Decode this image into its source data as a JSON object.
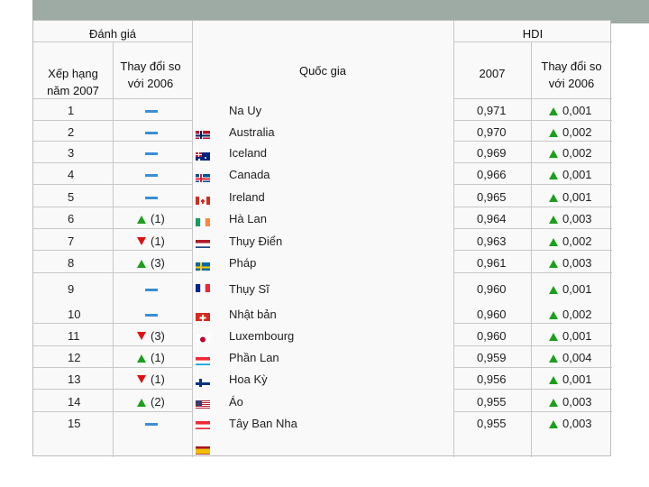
{
  "header": {
    "rating_group": "Đánh giá",
    "hdi_group": "HDI",
    "rank_col": "Xếp hạng năm 2007",
    "change_col": "Thay đổi so với 2006",
    "country_col": "Quốc gia",
    "year_col": "2007",
    "hdi_change_col": "Thay đổi so với 2006"
  },
  "rows": [
    {
      "rank": "1",
      "change": "",
      "change_dir": "same",
      "country": "Na Uy",
      "hdi": "0,971",
      "hdi_change": "0,001",
      "hdi_dir": "up",
      "flag": "norway-flag"
    },
    {
      "rank": "2",
      "change": "",
      "change_dir": "same",
      "country": "Australia",
      "hdi": "0,970",
      "hdi_change": "0,002",
      "hdi_dir": "up",
      "flag": "australia-flag"
    },
    {
      "rank": "3",
      "change": "",
      "change_dir": "same",
      "country": "Iceland",
      "hdi": "0,969",
      "hdi_change": "0,002",
      "hdi_dir": "up",
      "flag": "iceland-flag"
    },
    {
      "rank": "4",
      "change": "",
      "change_dir": "same",
      "country": "Canada",
      "hdi": "0,966",
      "hdi_change": "0,001",
      "hdi_dir": "up",
      "flag": "canada-flag"
    },
    {
      "rank": "5",
      "change": "",
      "change_dir": "same",
      "country": "Ireland",
      "hdi": "0,965",
      "hdi_change": "0,001",
      "hdi_dir": "up",
      "flag": "ireland-flag"
    },
    {
      "rank": "6",
      "change": "(1)",
      "change_dir": "up",
      "country": "Hà Lan",
      "hdi": "0,964",
      "hdi_change": "0,003",
      "hdi_dir": "up",
      "flag": "netherlands-flag"
    },
    {
      "rank": "7",
      "change": "(1)",
      "change_dir": "down",
      "country": "Thụy Điển",
      "hdi": "0,963",
      "hdi_change": "0,002",
      "hdi_dir": "up",
      "flag": "sweden-flag"
    },
    {
      "rank": "8",
      "change": "(3)",
      "change_dir": "up",
      "country": "Pháp",
      "hdi": "0,961",
      "hdi_change": "0,003",
      "hdi_dir": "up",
      "flag": "france-flag"
    },
    {
      "rank": "9",
      "change": "",
      "change_dir": "same",
      "country": "Thụy Sĩ",
      "hdi": "0,960",
      "hdi_change": "0,001",
      "hdi_dir": "up",
      "flag": "switzerland-flag"
    },
    {
      "rank": "10",
      "change": "",
      "change_dir": "same",
      "country": "Nhật bản",
      "hdi": "0,960",
      "hdi_change": "0,002",
      "hdi_dir": "up",
      "flag": "japan-flag"
    },
    {
      "rank": "11",
      "change": "(3)",
      "change_dir": "down",
      "country": "Luxembourg",
      "hdi": "0,960",
      "hdi_change": "0,001",
      "hdi_dir": "up",
      "flag": "luxembourg-flag"
    },
    {
      "rank": "12",
      "change": "(1)",
      "change_dir": "up",
      "country": "Phần Lan",
      "hdi": "0,959",
      "hdi_change": "0,004",
      "hdi_dir": "up",
      "flag": "finland-flag"
    },
    {
      "rank": "13",
      "change": "(1)",
      "change_dir": "down",
      "country": "Hoa Kỳ",
      "hdi": "0,956",
      "hdi_change": "0,001",
      "hdi_dir": "up",
      "flag": "usa-flag"
    },
    {
      "rank": "14",
      "change": "(2)",
      "change_dir": "up",
      "country": "Áo",
      "hdi": "0,955",
      "hdi_change": "0,003",
      "hdi_dir": "up",
      "flag": "austria-flag"
    },
    {
      "rank": "15",
      "change": "",
      "change_dir": "same",
      "country": "Tây Ban Nha",
      "hdi": "0,955",
      "hdi_change": "0,003",
      "hdi_dir": "up",
      "flag": "spain-flag"
    }
  ],
  "colors": {
    "up": "#1aa01a",
    "down": "#e01010",
    "same": "#3b8ed6",
    "grid": "#c8c8c8",
    "topbar": "#9eaaa4"
  }
}
